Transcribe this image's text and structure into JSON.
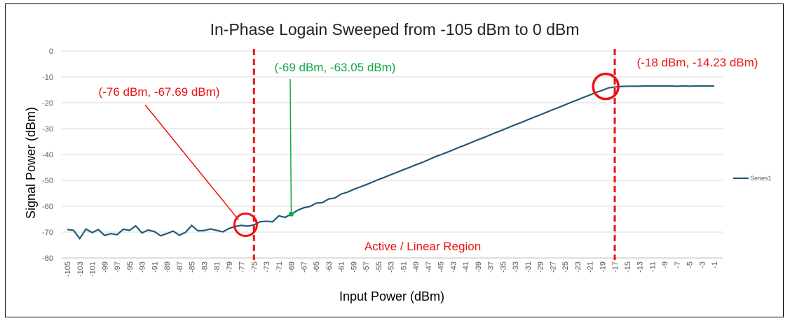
{
  "chart_data": {
    "type": "line",
    "title": "In-Phase Logain Sweeped from -105 dBm to 0 dBm",
    "xlabel": "Input Power (dBm)",
    "ylabel": "Signal Power (dBm)",
    "ylim": [
      -80,
      0
    ],
    "yticks": [
      0,
      -10,
      -20,
      -30,
      -40,
      -50,
      -60,
      -70,
      -80
    ],
    "xlim": [
      -105,
      0
    ],
    "grid": true,
    "legend": "right",
    "line_color": "#1f5b7a",
    "series": [
      {
        "name": "Series1",
        "x": [
          -105,
          -104,
          -103,
          -102,
          -101,
          -100,
          -99,
          -98,
          -97,
          -96,
          -95,
          -94,
          -93,
          -92,
          -91,
          -90,
          -89,
          -88,
          -87,
          -86,
          -85,
          -84,
          -83,
          -82,
          -81,
          -80,
          -79,
          -78,
          -77,
          -76,
          -75,
          -74,
          -73,
          -72,
          -71,
          -70,
          -69,
          -68,
          -67,
          -66,
          -65,
          -64,
          -63,
          -62,
          -61,
          -60,
          -59,
          -58,
          -57,
          -56,
          -55,
          -54,
          -53,
          -52,
          -51,
          -50,
          -49,
          -48,
          -47,
          -46,
          -45,
          -44,
          -43,
          -42,
          -41,
          -40,
          -39,
          -38,
          -37,
          -36,
          -35,
          -34,
          -33,
          -32,
          -31,
          -30,
          -29,
          -28,
          -27,
          -26,
          -25,
          -24,
          -23,
          -22,
          -21,
          -20,
          -19,
          -18,
          -17,
          -16,
          -15,
          -14,
          -13,
          -12,
          -11,
          -10,
          -9,
          -8,
          -7,
          -6,
          -5,
          -4,
          -3,
          -2,
          -1
        ],
        "values": [
          -69.0,
          -69.3,
          -72.5,
          -68.8,
          -70.2,
          -69.0,
          -71.3,
          -70.6,
          -71.0,
          -68.9,
          -69.3,
          -67.6,
          -70.3,
          -69.2,
          -69.8,
          -71.4,
          -70.6,
          -69.6,
          -71.2,
          -70.1,
          -67.4,
          -69.5,
          -69.4,
          -68.8,
          -69.3,
          -69.9,
          -68.6,
          -67.8,
          -67.4,
          -67.69,
          -67.2,
          -66.0,
          -65.8,
          -66.0,
          -63.7,
          -64.3,
          -63.05,
          -61.6,
          -60.6,
          -60.1,
          -58.8,
          -58.6,
          -57.2,
          -56.8,
          -55.3,
          -54.6,
          -53.5,
          -52.6,
          -51.7,
          -50.7,
          -49.7,
          -48.8,
          -47.8,
          -46.9,
          -45.9,
          -45.0,
          -44.0,
          -43.1,
          -42.1,
          -41.0,
          -40.1,
          -39.2,
          -38.2,
          -37.2,
          -36.3,
          -35.3,
          -34.3,
          -33.4,
          -32.4,
          -31.4,
          -30.5,
          -29.5,
          -28.5,
          -27.6,
          -26.6,
          -25.6,
          -24.7,
          -23.7,
          -22.7,
          -21.8,
          -20.8,
          -19.8,
          -18.9,
          -17.9,
          -17.0,
          -16.0,
          -15.2,
          -14.23,
          -13.9,
          -13.7,
          -13.6,
          -13.6,
          -13.6,
          -13.5,
          -13.5,
          -13.5,
          -13.5,
          -13.5,
          -13.6,
          -13.5,
          -13.6,
          -13.5,
          -13.5,
          -13.5,
          -13.5
        ]
      }
    ],
    "annotations": [
      {
        "label": "(-76 dBm, -67.69 dBm)",
        "x": -76,
        "y": -67.69,
        "color": "#ee1111"
      },
      {
        "label": "(-69 dBm, -63.05 dBm)",
        "x": -69,
        "y": -63.05,
        "color": "#10a84a"
      },
      {
        "label": "(-18 dBm, -14.23 dBm)",
        "x": -18,
        "y": -14.23,
        "color": "#ee1111"
      }
    ],
    "region_label": "Active / Linear Region",
    "vlines": [
      -76,
      -18
    ]
  }
}
